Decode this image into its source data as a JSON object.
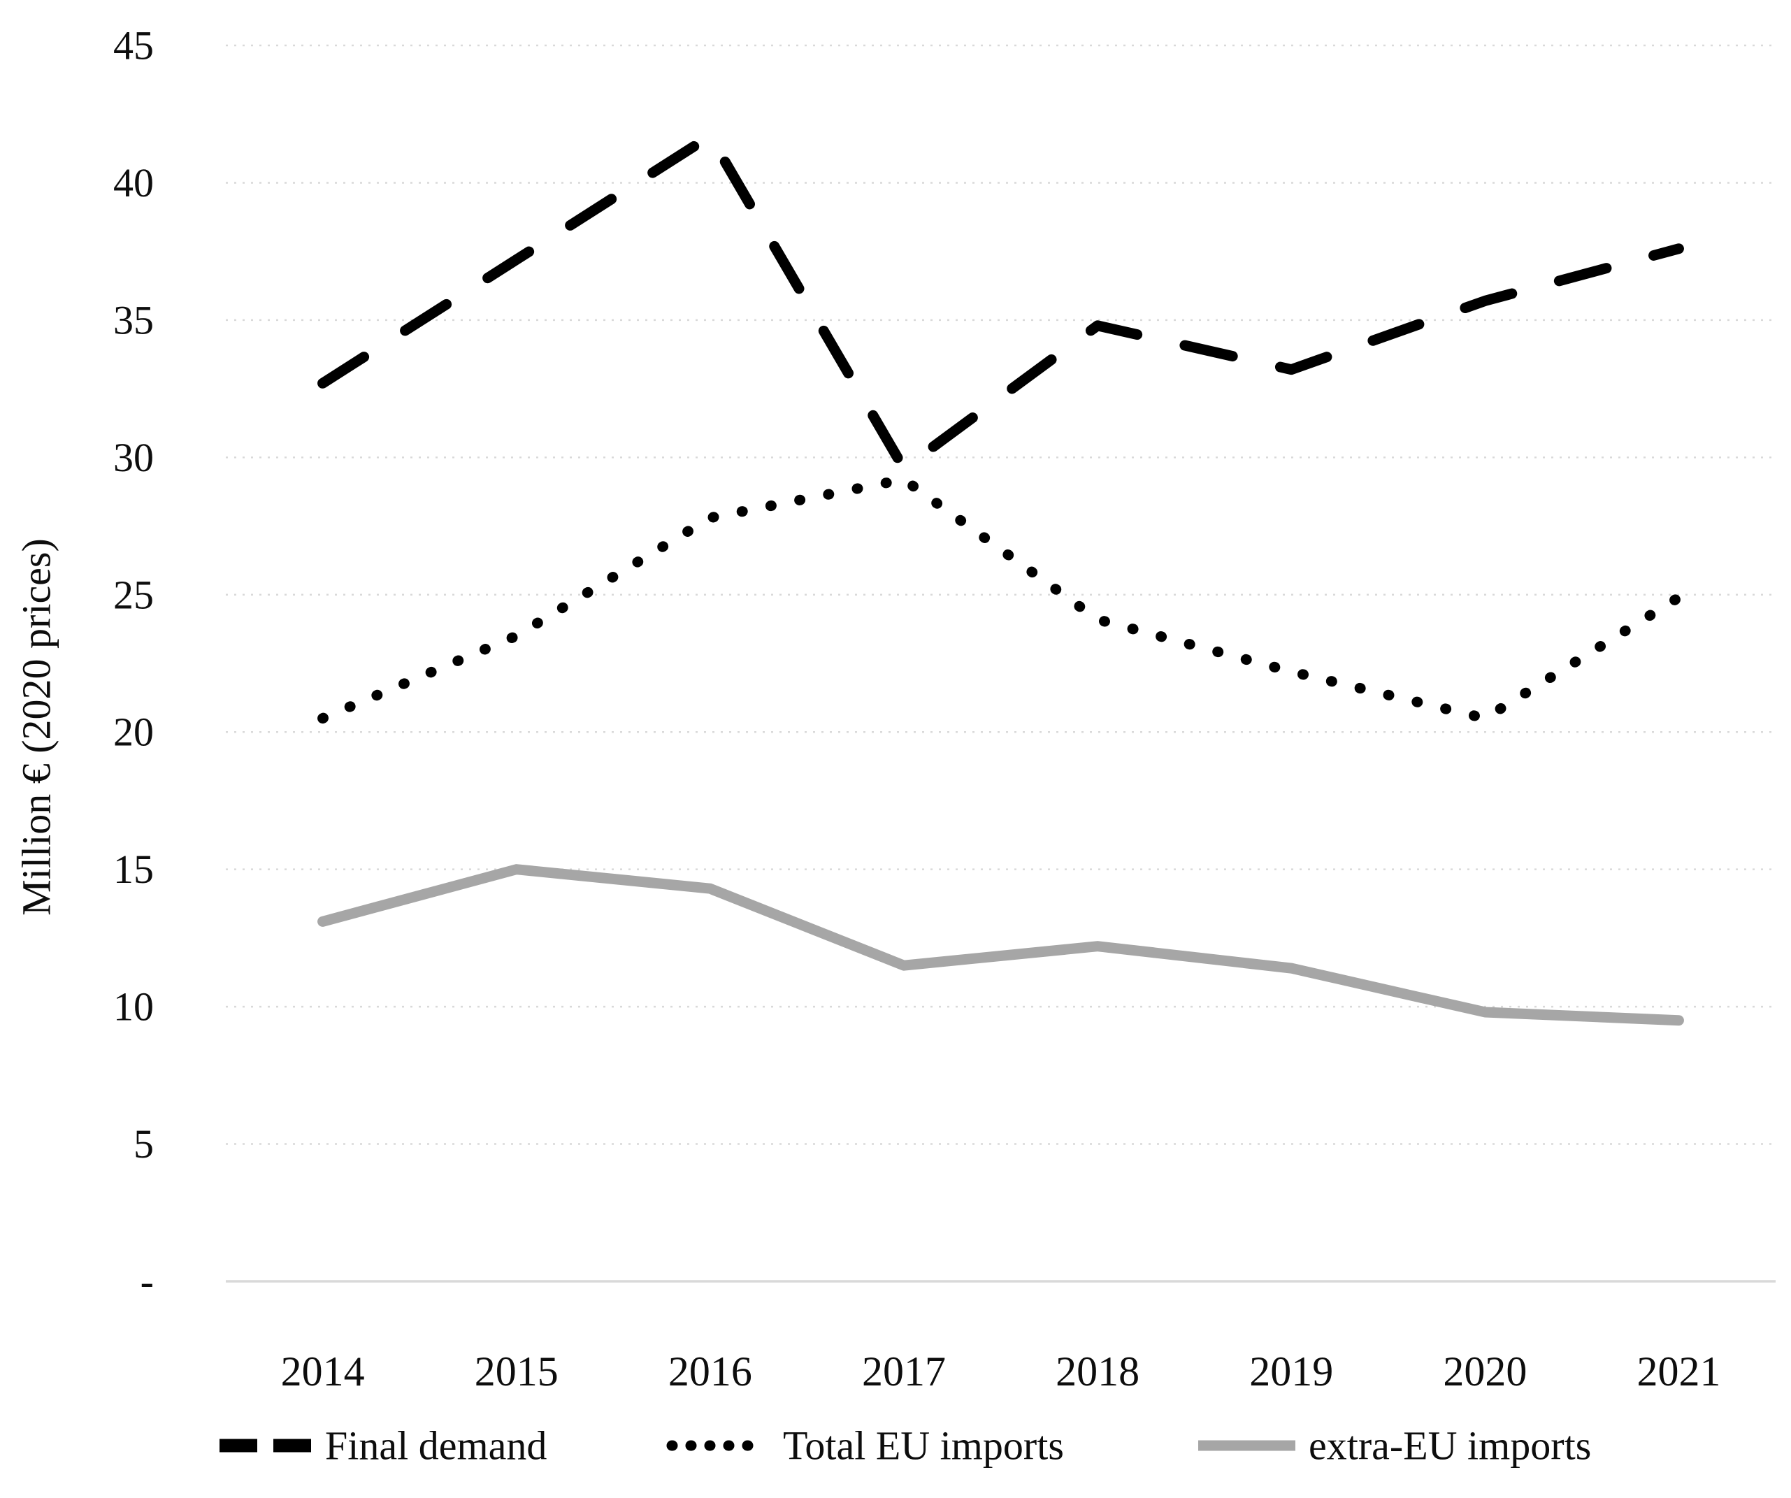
{
  "chart_data": {
    "type": "line",
    "categories": [
      "2014",
      "2015",
      "2016",
      "2017",
      "2018",
      "2019",
      "2020",
      "2021"
    ],
    "series": [
      {
        "name": "Final demand",
        "line_style": "dashed",
        "color": "#000000",
        "values": [
          32.7,
          37.2,
          41.7,
          29.6,
          34.8,
          33.2,
          35.7,
          37.6
        ]
      },
      {
        "name": "Total EU imports",
        "line_style": "dotted",
        "color": "#000000",
        "values": [
          20.5,
          23.5,
          27.8,
          29.2,
          24.1,
          22.2,
          20.5,
          24.9
        ]
      },
      {
        "name": "extra-EU imports",
        "line_style": "solid",
        "color": "#a6a6a6",
        "values": [
          13.1,
          15.0,
          14.3,
          11.5,
          12.2,
          11.4,
          9.8,
          9.5
        ]
      }
    ],
    "title": "",
    "xlabel": "",
    "ylabel": "Million € (2020 prices)",
    "ylim": [
      0,
      45
    ],
    "ytick_step": 5,
    "ytick_labels": [
      "-",
      "5",
      "10",
      "15",
      "20",
      "25",
      "30",
      "35",
      "40",
      "45"
    ],
    "grid": true,
    "gridline_color": "#d9d9d9",
    "axis_line_color": "#d9d9d9",
    "text_color": "#0d0d0d",
    "legend_position": "bottom"
  }
}
